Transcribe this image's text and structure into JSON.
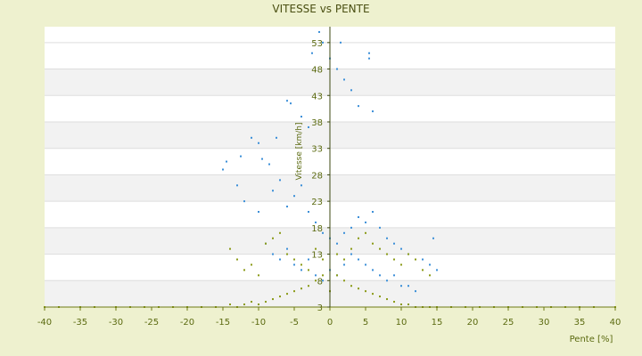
{
  "chart_data": {
    "type": "scatter",
    "title": "VITESSE vs PENTE",
    "xlabel": "Pente [%]",
    "ylabel": "Vitesse [km/h]",
    "xlim": [
      -40,
      40
    ],
    "ylim": [
      3,
      56
    ],
    "x_ticks": [
      -40,
      -35,
      -30,
      -25,
      -20,
      -15,
      -10,
      -5,
      0,
      5,
      10,
      15,
      20,
      25,
      30,
      35,
      40
    ],
    "y_ticks": [
      3,
      8,
      13,
      18,
      23,
      28,
      33,
      38,
      43,
      48,
      53
    ],
    "grid": true,
    "series": [
      {
        "color": "#3b8fd8",
        "description_points": "dense cloud, x mostly -10..10, y 6..53, centered near (0,18)",
        "points": [
          [
            -14.5,
            30.5
          ],
          [
            -15,
            29
          ],
          [
            -12.5,
            31.5
          ],
          [
            -11,
            35
          ],
          [
            -10,
            34
          ],
          [
            -9.5,
            31
          ],
          [
            -8.5,
            30
          ],
          [
            -7.5,
            35
          ],
          [
            -6,
            42
          ],
          [
            -5.5,
            41.5
          ],
          [
            -4,
            39
          ],
          [
            -3,
            37
          ],
          [
            -2.5,
            51
          ],
          [
            -1.5,
            55
          ],
          [
            -1,
            53
          ],
          [
            0,
            50
          ],
          [
            1,
            48
          ],
          [
            1.5,
            53
          ],
          [
            2,
            46
          ],
          [
            3,
            44
          ],
          [
            4,
            41
          ],
          [
            5.5,
            51
          ],
          [
            5.5,
            50
          ],
          [
            6,
            40
          ],
          [
            -13,
            26
          ],
          [
            -12,
            23
          ],
          [
            -10,
            21
          ],
          [
            -8,
            25
          ],
          [
            -7,
            27
          ],
          [
            -6,
            22
          ],
          [
            -5,
            24
          ],
          [
            -4,
            26
          ],
          [
            -3,
            21
          ],
          [
            -2,
            19
          ],
          [
            -1,
            17
          ],
          [
            0,
            16
          ],
          [
            1,
            15
          ],
          [
            2,
            17
          ],
          [
            3,
            18
          ],
          [
            4,
            20
          ],
          [
            5,
            19
          ],
          [
            6,
            21
          ],
          [
            7,
            18
          ],
          [
            8,
            16
          ],
          [
            9,
            15
          ],
          [
            10,
            14
          ],
          [
            11,
            13
          ],
          [
            12,
            12
          ],
          [
            13,
            12
          ],
          [
            14.5,
            16
          ],
          [
            14,
            11
          ],
          [
            15,
            10
          ],
          [
            -9,
            15
          ],
          [
            -8,
            13
          ],
          [
            -7,
            12
          ],
          [
            -6,
            14
          ],
          [
            -5,
            11
          ],
          [
            -4,
            10
          ],
          [
            -3,
            12
          ],
          [
            -2,
            9
          ],
          [
            -1,
            8
          ],
          [
            0,
            10
          ],
          [
            1,
            9
          ],
          [
            2,
            11
          ],
          [
            3,
            13
          ],
          [
            4,
            12
          ],
          [
            5,
            11
          ],
          [
            6,
            10
          ],
          [
            7,
            9
          ],
          [
            8,
            8
          ],
          [
            9,
            9
          ],
          [
            10,
            7
          ],
          [
            11,
            7
          ],
          [
            12,
            6
          ]
        ]
      },
      {
        "color": "#8a9a16",
        "description_points": "olive points, mostly 3..20 km/h, spread along x -40..40 near y=3",
        "points": [
          [
            -40,
            3
          ],
          [
            -38,
            3
          ],
          [
            -35,
            3
          ],
          [
            -33,
            3
          ],
          [
            -30,
            3
          ],
          [
            -28,
            3
          ],
          [
            -26,
            3
          ],
          [
            -24,
            3
          ],
          [
            -22,
            3
          ],
          [
            -20,
            3
          ],
          [
            -18,
            3
          ],
          [
            -16,
            3
          ],
          [
            -14,
            3.5
          ],
          [
            -13,
            3
          ],
          [
            -12,
            3.5
          ],
          [
            -11,
            4
          ],
          [
            -10,
            3.5
          ],
          [
            -9,
            4
          ],
          [
            -8,
            4.5
          ],
          [
            -7,
            5
          ],
          [
            -6,
            5.5
          ],
          [
            -5,
            6
          ],
          [
            -4,
            6.5
          ],
          [
            -3,
            7
          ],
          [
            -2,
            8
          ],
          [
            -1,
            9
          ],
          [
            0,
            6
          ],
          [
            1,
            9
          ],
          [
            2,
            8
          ],
          [
            3,
            7
          ],
          [
            4,
            6.5
          ],
          [
            5,
            6
          ],
          [
            6,
            5.5
          ],
          [
            7,
            5
          ],
          [
            8,
            4.5
          ],
          [
            9,
            4
          ],
          [
            10,
            3.5
          ],
          [
            11,
            3.5
          ],
          [
            12,
            3
          ],
          [
            13,
            3
          ],
          [
            14,
            3
          ],
          [
            15,
            3
          ],
          [
            17,
            3
          ],
          [
            19,
            3
          ],
          [
            21,
            3
          ],
          [
            23,
            3
          ],
          [
            25,
            3
          ],
          [
            27,
            3
          ],
          [
            29,
            3
          ],
          [
            31,
            3
          ],
          [
            33,
            3
          ],
          [
            35,
            3
          ],
          [
            37,
            3
          ],
          [
            40,
            3
          ],
          [
            -14,
            14
          ],
          [
            -13,
            12
          ],
          [
            -12,
            10
          ],
          [
            -11,
            11
          ],
          [
            -10,
            9
          ],
          [
            -9,
            15
          ],
          [
            -8,
            16
          ],
          [
            -7,
            17
          ],
          [
            -6,
            13
          ],
          [
            -5,
            12
          ],
          [
            -4,
            11
          ],
          [
            -3,
            10
          ],
          [
            -2,
            14
          ],
          [
            -1,
            12
          ],
          [
            1,
            13
          ],
          [
            2,
            12
          ],
          [
            3,
            14
          ],
          [
            4,
            16
          ],
          [
            5,
            17
          ],
          [
            6,
            15
          ],
          [
            7,
            14
          ],
          [
            8,
            13
          ],
          [
            9,
            12
          ],
          [
            10,
            11
          ],
          [
            11,
            13
          ],
          [
            12,
            12
          ],
          [
            13,
            10
          ],
          [
            14,
            9
          ]
        ]
      }
    ]
  }
}
